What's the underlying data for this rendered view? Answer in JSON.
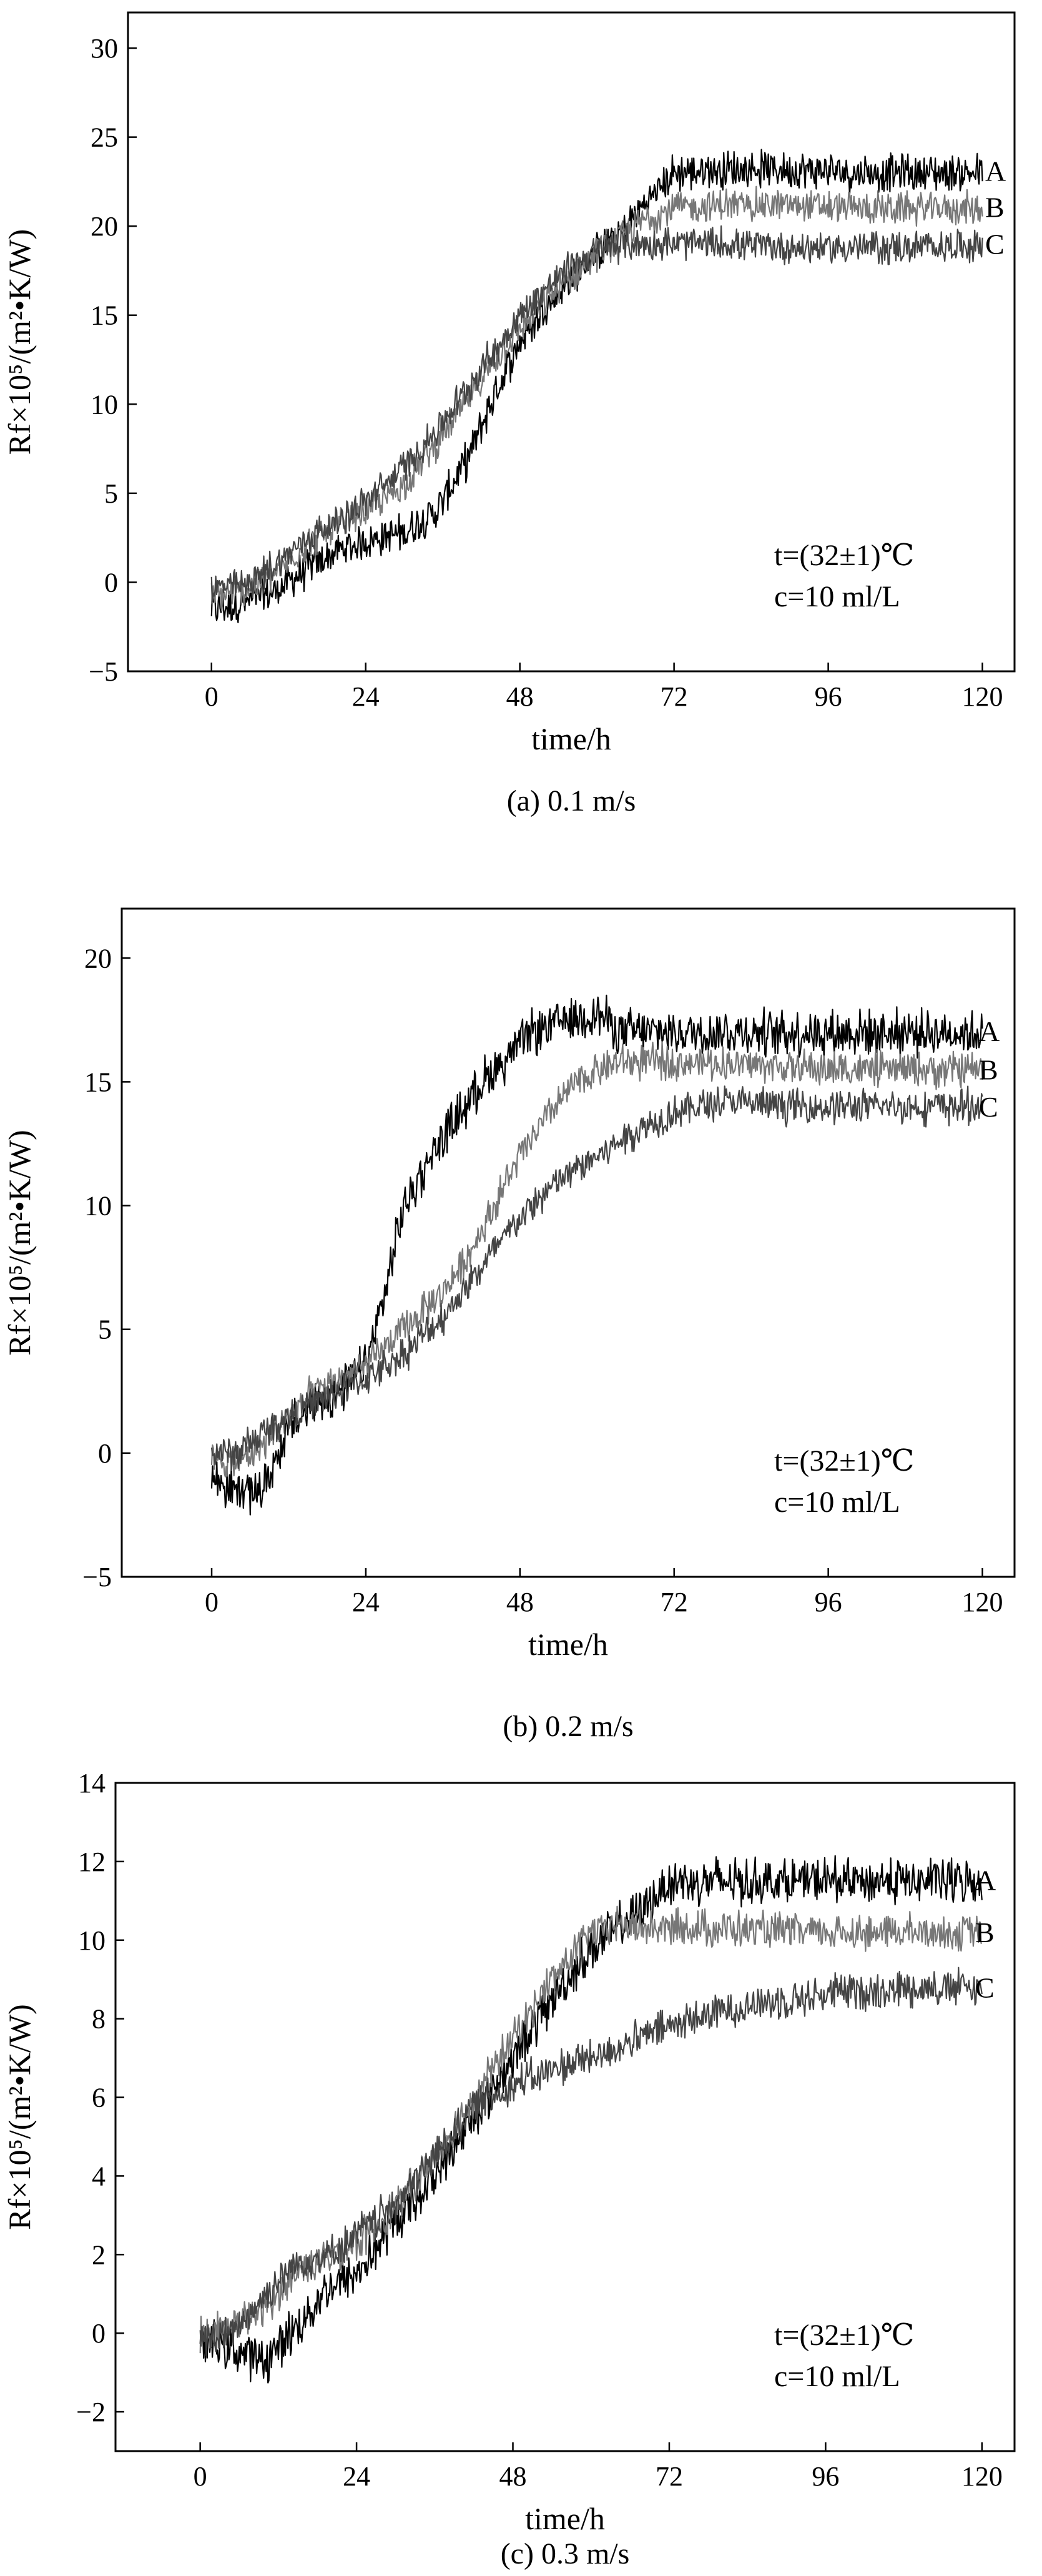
{
  "chart_data": [
    {
      "type": "line",
      "id": "a",
      "caption": "(a)  0.1 m/s",
      "xlabel": "time/h",
      "ylabel": "Rf×10⁵/(m²•K/W)",
      "xlim": [
        -13,
        125
      ],
      "ylim": [
        -5,
        32
      ],
      "xticks": [
        0,
        24,
        48,
        72,
        96,
        120
      ],
      "yticks": [
        -5,
        0,
        5,
        10,
        15,
        20,
        25,
        30
      ],
      "annotation": [
        "t=(32±1)℃",
        "c=10 ml/L"
      ],
      "series": [
        {
          "name": "A",
          "color": "#000000",
          "noise": 0.9,
          "x": [
            0,
            5,
            10,
            15,
            20,
            24,
            30,
            35,
            40,
            44,
            48,
            52,
            56,
            60,
            64,
            68,
            72,
            80,
            90,
            100,
            110,
            120
          ],
          "y": [
            -1.5,
            -1.2,
            -0.5,
            0.8,
            1.8,
            2.3,
            2.8,
            4,
            7,
            10.5,
            13.5,
            15.5,
            17,
            18.5,
            19.8,
            21.5,
            23,
            23.2,
            23.2,
            23,
            23,
            23
          ]
        },
        {
          "name": "B",
          "color": "#777777",
          "noise": 0.8,
          "x": [
            0,
            5,
            10,
            15,
            20,
            24,
            30,
            35,
            40,
            44,
            48,
            52,
            56,
            60,
            64,
            68,
            72,
            80,
            90,
            100,
            110,
            120
          ],
          "y": [
            -0.8,
            -0.5,
            0.5,
            2.2,
            3.2,
            4,
            5.5,
            7.8,
            10.3,
            12.5,
            14.2,
            15.8,
            17.2,
            18.5,
            19.5,
            20.5,
            21,
            21.2,
            21.2,
            21,
            21,
            21
          ]
        },
        {
          "name": "C",
          "color": "#444444",
          "noise": 0.8,
          "x": [
            0,
            5,
            10,
            15,
            20,
            24,
            30,
            35,
            40,
            44,
            48,
            52,
            56,
            60,
            64,
            68,
            72,
            80,
            90,
            100,
            110,
            120
          ],
          "y": [
            -0.3,
            -0.2,
            1,
            2.5,
            3.5,
            4.5,
            6.5,
            8.5,
            11,
            13,
            15,
            16.5,
            17.8,
            18.6,
            19,
            19,
            19,
            19,
            18.8,
            18.8,
            18.8,
            19
          ]
        }
      ]
    },
    {
      "type": "line",
      "id": "b",
      "caption": "(b) 0.2 m/s",
      "xlabel": "time/h",
      "ylabel": "Rf×10⁵/(m²•K/W)",
      "xlim": [
        -14,
        125
      ],
      "ylim": [
        -5,
        22
      ],
      "xticks": [
        0,
        24,
        48,
        72,
        96,
        120
      ],
      "yticks": [
        -5,
        0,
        5,
        10,
        15,
        20
      ],
      "annotation": [
        "t=(32±1)℃",
        "c=10 ml/L"
      ],
      "series": [
        {
          "name": "A",
          "color": "#000000",
          "noise": 0.8,
          "x": [
            0,
            4,
            8,
            12,
            16,
            20,
            24,
            27,
            30,
            34,
            38,
            42,
            46,
            50,
            55,
            60,
            64,
            72,
            84,
            96,
            108,
            120
          ],
          "y": [
            -1,
            -1.5,
            -1.5,
            1,
            2,
            2.5,
            3.5,
            6.5,
            10,
            12,
            13.5,
            15,
            16,
            17,
            17.5,
            17.8,
            17,
            17,
            17,
            17,
            17,
            17
          ]
        },
        {
          "name": "B",
          "color": "#777777",
          "noise": 0.6,
          "x": [
            0,
            4,
            8,
            12,
            16,
            20,
            24,
            30,
            36,
            40,
            44,
            48,
            52,
            56,
            60,
            64,
            72,
            84,
            96,
            108,
            120
          ],
          "y": [
            -0.3,
            -0.3,
            0.3,
            1.5,
            2.5,
            3,
            3.5,
            5,
            6.5,
            8,
            10,
            12,
            13.5,
            14.8,
            15.5,
            15.8,
            15.8,
            15.7,
            15.5,
            15.5,
            15.5
          ]
        },
        {
          "name": "C",
          "color": "#444444",
          "noise": 0.6,
          "x": [
            0,
            4,
            8,
            12,
            16,
            20,
            24,
            30,
            36,
            42,
            48,
            54,
            60,
            66,
            72,
            80,
            90,
            100,
            110,
            120
          ],
          "y": [
            0,
            0,
            0.8,
            1.5,
            2,
            2.5,
            3,
            4,
            5.5,
            7.5,
            9.5,
            11,
            12,
            13,
            13.8,
            14.2,
            14,
            14,
            14,
            14
          ]
        }
      ]
    },
    {
      "type": "line",
      "id": "c",
      "caption": "(c) 0.3 m/s",
      "xlabel": "time/h",
      "ylabel": "Rf×10⁵/(m²•K/W)",
      "xlim": [
        -13,
        125
      ],
      "ylim": [
        -3,
        14
      ],
      "xticks": [
        0,
        24,
        48,
        72,
        96,
        120
      ],
      "yticks": [
        -2,
        0,
        2,
        4,
        6,
        8,
        10,
        12,
        14
      ],
      "annotation": [
        "t=(32±1)℃",
        "c=10 ml/L"
      ],
      "series": [
        {
          "name": "A",
          "color": "#000000",
          "noise": 0.5,
          "x": [
            0,
            5,
            10,
            15,
            20,
            24,
            30,
            36,
            42,
            48,
            54,
            60,
            64,
            68,
            72,
            80,
            90,
            100,
            110,
            120
          ],
          "y": [
            -0.2,
            -0.4,
            -0.7,
            0.2,
            1.2,
            1.5,
            2.8,
            4,
            5.5,
            7,
            8.5,
            9.8,
            10.3,
            10.8,
            11.5,
            11.5,
            11.5,
            11.5,
            11.5,
            11.5
          ]
        },
        {
          "name": "B",
          "color": "#777777",
          "noise": 0.4,
          "x": [
            0,
            5,
            10,
            15,
            20,
            24,
            30,
            36,
            42,
            48,
            54,
            60,
            64,
            68,
            72,
            80,
            90,
            100,
            110,
            120
          ],
          "y": [
            0,
            0.2,
            0.6,
            1.6,
            2,
            2.3,
            3.2,
            4.5,
            6,
            7.5,
            9,
            10.2,
            10.4,
            10.3,
            10.3,
            10.3,
            10.2,
            10.2,
            10.2,
            10.2
          ]
        },
        {
          "name": "C",
          "color": "#444444",
          "noise": 0.4,
          "x": [
            0,
            5,
            10,
            15,
            20,
            24,
            30,
            36,
            42,
            48,
            54,
            60,
            66,
            72,
            80,
            90,
            100,
            110,
            120
          ],
          "y": [
            -0.2,
            0,
            1,
            1.8,
            2,
            2.5,
            3.3,
            4.5,
            5.8,
            6.3,
            6.7,
            7,
            7.4,
            7.8,
            8.2,
            8.5,
            8.7,
            8.8,
            8.8
          ]
        }
      ]
    }
  ]
}
